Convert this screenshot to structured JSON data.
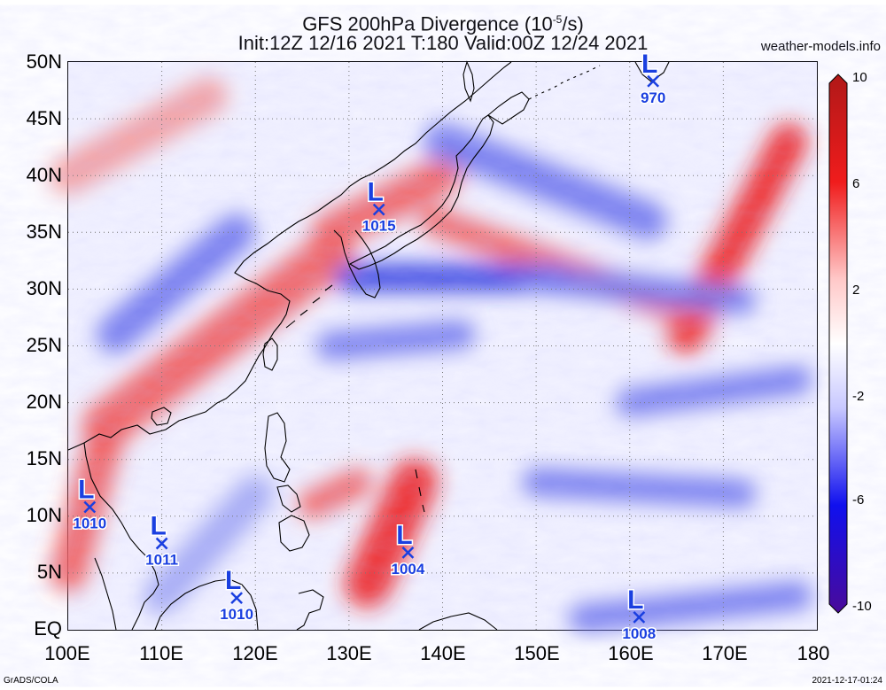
{
  "title": {
    "line1": "GFS 200hPa Divergence (10",
    "line1_sup": "-5",
    "line1_end": "/s)",
    "line2": "Init:12Z 12/16 2021 T:180 Valid:00Z 12/24 2021"
  },
  "site": "weather-models.info",
  "credit": "GrADS/COLA",
  "timestamp": "2021-12-17-01:24",
  "axes": {
    "lat_labels": [
      "50N",
      "45N",
      "40N",
      "35N",
      "30N",
      "25N",
      "20N",
      "15N",
      "10N",
      "5N",
      "EQ"
    ],
    "lat_values": [
      50,
      45,
      40,
      35,
      30,
      25,
      20,
      15,
      10,
      5,
      0
    ],
    "lon_labels": [
      "100E",
      "110E",
      "120E",
      "130E",
      "140E",
      "150E",
      "160E",
      "170E",
      "180"
    ],
    "lon_values": [
      100,
      110,
      120,
      130,
      140,
      150,
      160,
      170,
      180
    ],
    "lon_range": [
      100,
      180
    ],
    "lat_range": [
      0,
      50
    ]
  },
  "colorbar": {
    "labels": [
      "10",
      "6",
      "2",
      "-2",
      "-6",
      "-10"
    ],
    "values": [
      10,
      6,
      2,
      -2,
      -6,
      -10
    ],
    "colors": {
      "max": "#b01818",
      "high": "#f01c1c",
      "low_pos": "#ffc8c8",
      "zero": "#ffffff",
      "low_neg": "#c8c8ff",
      "neg": "#1010ee",
      "min": "#4a0a9a"
    }
  },
  "low_centers": [
    {
      "symbol": "L",
      "pressure": "970",
      "lon": 162.5,
      "lat": 48.3
    },
    {
      "symbol": "L",
      "pressure": "1015",
      "lon": 133.2,
      "lat": 37.0
    },
    {
      "symbol": "L",
      "pressure": "1010",
      "lon": 102.3,
      "lat": 10.8
    },
    {
      "symbol": "L",
      "pressure": "1011",
      "lon": 110.0,
      "lat": 7.6
    },
    {
      "symbol": "L",
      "pressure": "1010",
      "lon": 118.0,
      "lat": 2.8
    },
    {
      "symbol": "L",
      "pressure": "1004",
      "lon": 136.3,
      "lat": 6.8
    },
    {
      "symbol": "L",
      "pressure": "1008",
      "lon": 161.0,
      "lat": 1.1
    }
  ],
  "field": {
    "variable": "200hPa divergence",
    "units": "10^-5/s",
    "features": [
      {
        "sign": "positive",
        "strength": 5,
        "lon_start": 104,
        "lat_start": 18,
        "lon_end": 128,
        "lat_end": 33,
        "width_deg": 5
      },
      {
        "sign": "positive",
        "strength": 4,
        "lon_start": 128,
        "lat_start": 35,
        "lon_end": 140,
        "lat_end": 40,
        "width_deg": 4
      },
      {
        "sign": "positive",
        "strength": 7,
        "lon_start": 132,
        "lat_start": 4,
        "lon_end": 137,
        "lat_end": 13,
        "width_deg": 5
      },
      {
        "sign": "positive",
        "strength": 4,
        "lon_start": 126,
        "lat_start": 11,
        "lon_end": 131,
        "lat_end": 13,
        "width_deg": 3
      },
      {
        "sign": "positive",
        "strength": 6,
        "lon_start": 166,
        "lat_start": 26,
        "lon_end": 177,
        "lat_end": 43,
        "width_deg": 4
      },
      {
        "sign": "positive",
        "strength": 5,
        "lon_start": 139,
        "lat_start": 36,
        "lon_end": 166,
        "lat_end": 28,
        "width_deg": 3
      },
      {
        "sign": "positive",
        "strength": 4,
        "lon_start": 100,
        "lat_start": 5,
        "lon_end": 104,
        "lat_end": 17,
        "width_deg": 4
      },
      {
        "sign": "positive",
        "strength": 3,
        "lon_start": 100,
        "lat_start": 40,
        "lon_end": 115,
        "lat_end": 47,
        "width_deg": 4
      },
      {
        "sign": "negative",
        "strength": 6,
        "lon_start": 130,
        "lat_start": 31,
        "lon_end": 152,
        "lat_end": 31,
        "width_deg": 3
      },
      {
        "sign": "negative",
        "strength": 4,
        "lon_start": 150,
        "lat_start": 31,
        "lon_end": 172,
        "lat_end": 29,
        "width_deg": 3
      },
      {
        "sign": "negative",
        "strength": 5,
        "lon_start": 128,
        "lat_start": 25,
        "lon_end": 142,
        "lat_end": 26,
        "width_deg": 3
      },
      {
        "sign": "negative",
        "strength": 4,
        "lon_start": 105,
        "lat_start": 26,
        "lon_end": 118,
        "lat_end": 35,
        "width_deg": 4
      },
      {
        "sign": "negative",
        "strength": 5,
        "lon_start": 150,
        "lat_start": 13,
        "lon_end": 172,
        "lat_end": 12,
        "width_deg": 3
      },
      {
        "sign": "negative",
        "strength": 4,
        "lon_start": 155,
        "lat_start": 1,
        "lon_end": 178,
        "lat_end": 3,
        "width_deg": 3
      },
      {
        "sign": "negative",
        "strength": 4,
        "lon_start": 140,
        "lat_start": 43,
        "lon_end": 162,
        "lat_end": 36,
        "width_deg": 4
      },
      {
        "sign": "negative",
        "strength": 3,
        "lon_start": 110,
        "lat_start": 3,
        "lon_end": 120,
        "lat_end": 12,
        "width_deg": 4
      },
      {
        "sign": "negative",
        "strength": 4,
        "lon_start": 160,
        "lat_start": 20,
        "lon_end": 178,
        "lat_end": 22,
        "width_deg": 3
      }
    ]
  }
}
